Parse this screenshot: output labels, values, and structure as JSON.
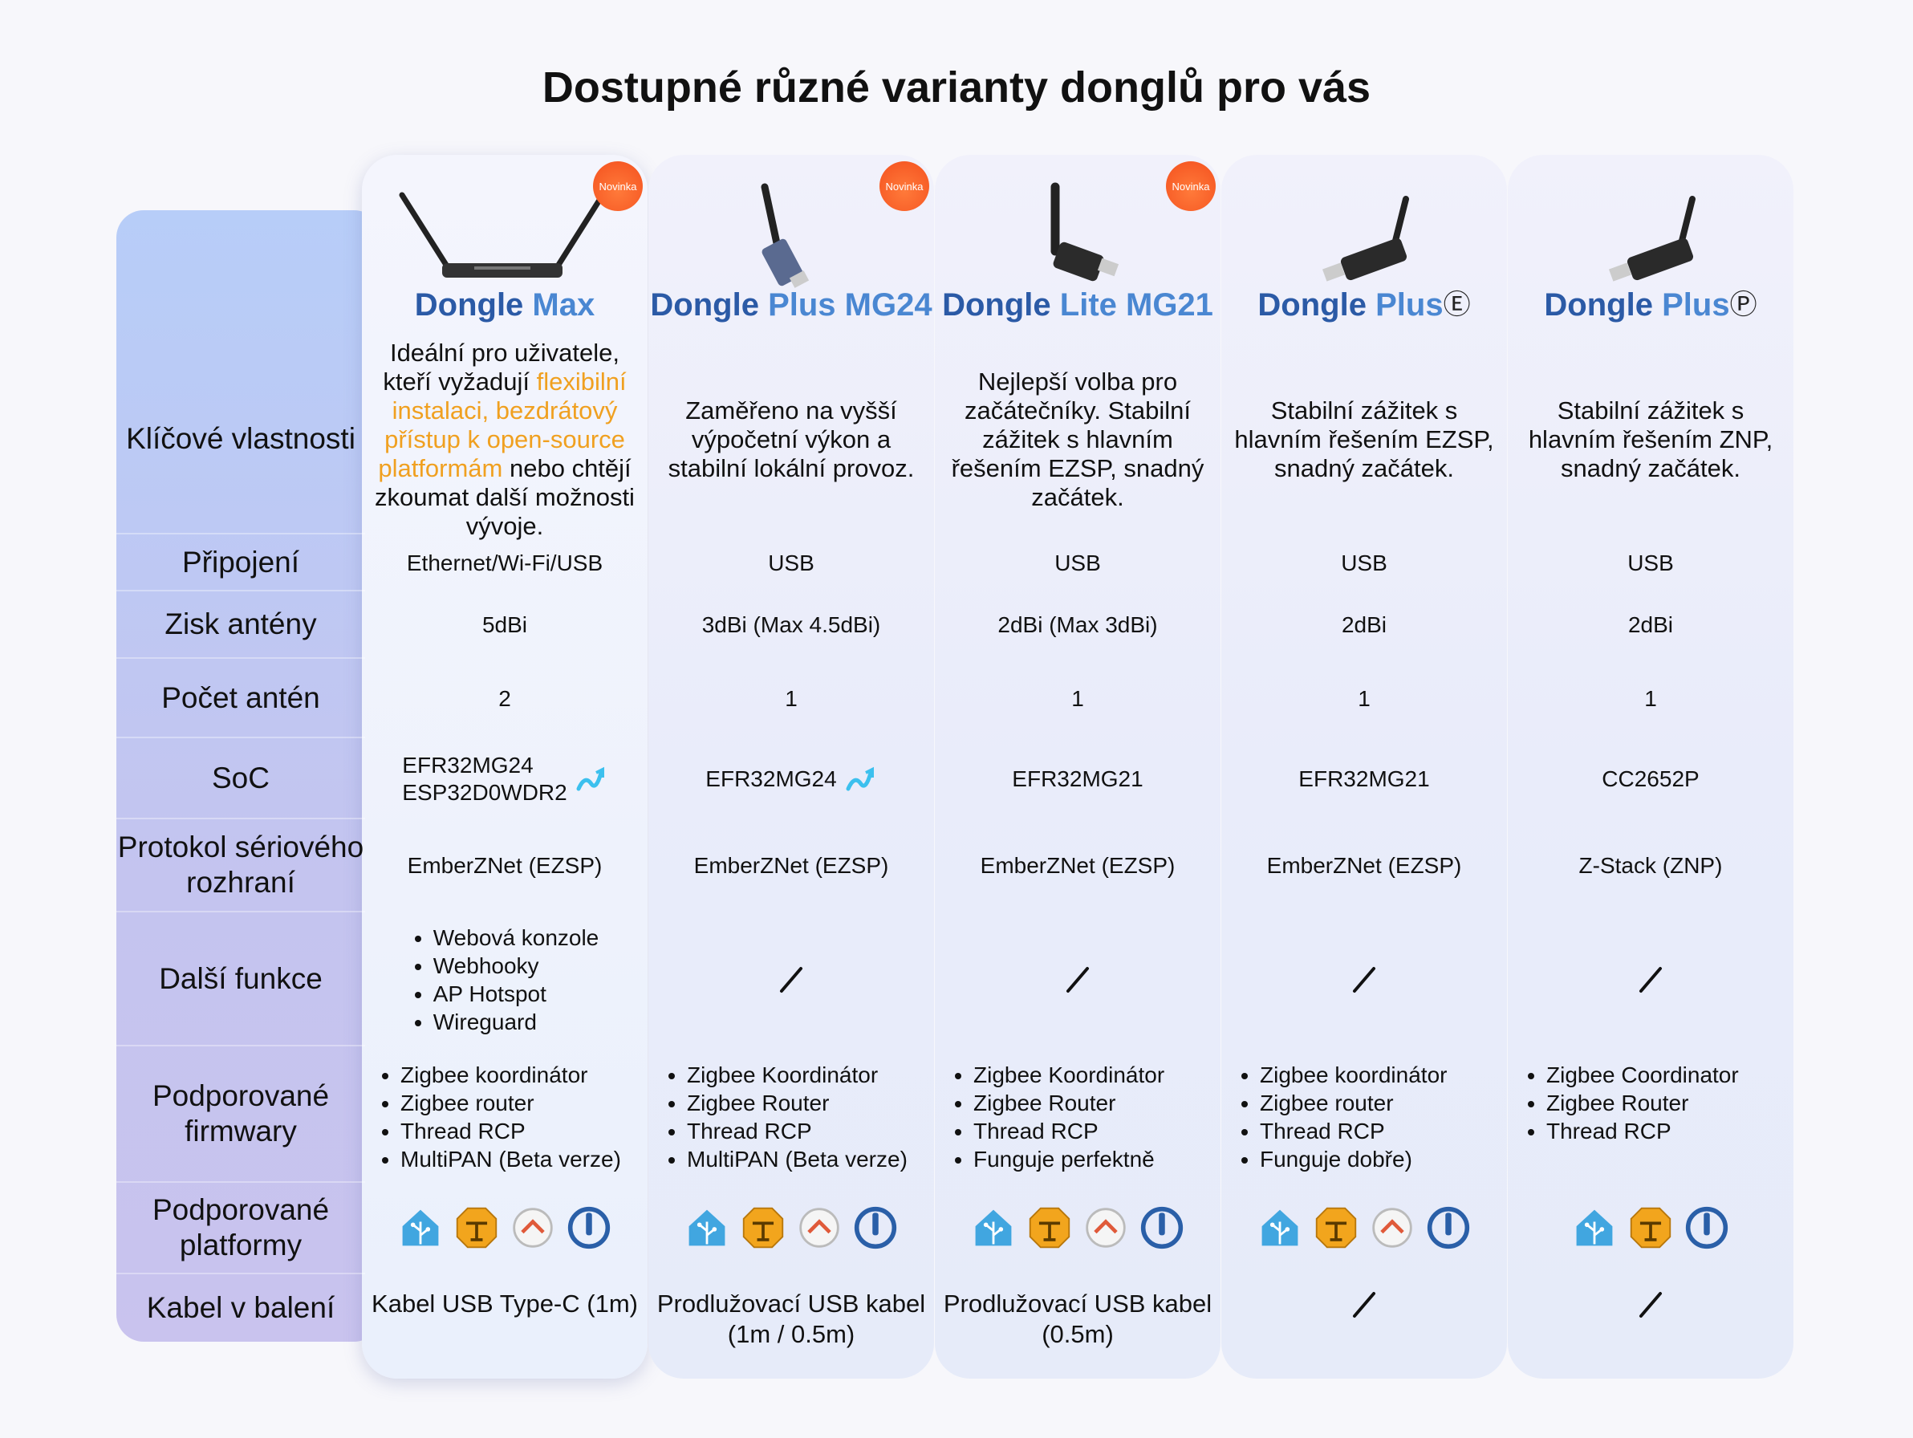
{
  "title": "Dostupné různé varianty donglů pro vás",
  "row_labels": [
    "Klíčové vlastnosti",
    "Připojení",
    "Zisk antény",
    "Počet antén",
    "SoC",
    "Protokol sériového rozhraní",
    "Další funkce",
    "Podporované firmwary",
    "Podporované platformy",
    "Kabel v balení"
  ],
  "products": [
    {
      "badge": "Novinka",
      "series": "Dongle",
      "model": "Max",
      "features": [
        {
          "text": "Ideální pro uživatele, kteří vyžadují "
        },
        {
          "text": "flexibilní instalaci, bezdrátový přístup k open-source platformám",
          "highlight": true
        },
        {
          "text": " nebo chtějí zkoumat další možnosti vývoje."
        }
      ],
      "connection": "Ethernet/Wi-Fi/USB",
      "antenna_gain": "5dBi",
      "antenna_count": 2,
      "soc": [
        "EFR32MG24",
        "ESP32D0WDR2"
      ],
      "soc_upgrade": true,
      "protocol": "EmberZNet (EZSP)",
      "extra": [
        "Webová konzole",
        "Webhooky",
        "AP Hotspot",
        "Wireguard"
      ],
      "firmware": [
        "Zigbee koordinátor",
        "Zigbee router",
        "Thread RCP",
        "MultiPAN (Beta verze)"
      ],
      "cable": "Kabel USB Type-C (1m)"
    },
    {
      "badge": "Novinka",
      "series": "Dongle",
      "model": "Plus MG24",
      "features": [
        {
          "text": "Zaměřeno na vyšší výpočetní výkon a stabilní lokální provoz."
        }
      ],
      "connection": "USB",
      "antenna_gain": "3dBi (Max 4.5dBi)",
      "antenna_count": 1,
      "soc": [
        "EFR32MG24"
      ],
      "soc_upgrade": true,
      "protocol": "EmberZNet (EZSP)",
      "extra": null,
      "firmware": [
        "Zigbee Koordinátor",
        "Zigbee Router",
        "Thread RCP",
        "MultiPAN (Beta verze)"
      ],
      "cable": "Prodlužovací USB kabel (1m / 0.5m)"
    },
    {
      "badge": "Novinka",
      "series": "Dongle",
      "model": "Lite MG21",
      "features": [
        {
          "text": "Nejlepší volba pro začátečníky. Stabilní zážitek s hlavním řešením EZSP, snadný začátek."
        }
      ],
      "connection": "USB",
      "antenna_gain": "2dBi (Max 3dBi)",
      "antenna_count": 1,
      "soc": [
        "EFR32MG21"
      ],
      "soc_upgrade": false,
      "protocol": "EmberZNet (EZSP)",
      "extra": null,
      "firmware": [
        "Zigbee Koordinátor",
        "Zigbee Router",
        "Thread RCP",
        "Funguje perfektně"
      ],
      "cable": "Prodlužovací USB kabel (0.5m)"
    },
    {
      "series": "Dongle",
      "model": "Plus",
      "mark": "Ⓔ",
      "features": [
        {
          "text": "Stabilní zážitek s hlavním řešením EZSP, snadný začátek."
        }
      ],
      "connection": "USB",
      "antenna_gain": "2dBi",
      "antenna_count": 1,
      "soc": [
        "EFR32MG21"
      ],
      "soc_upgrade": false,
      "protocol": "EmberZNet (EZSP)",
      "extra": null,
      "firmware": [
        "Zigbee koordinátor",
        "Zigbee router",
        "Thread RCP",
        "Funguje dobře)"
      ],
      "cable": null
    },
    {
      "series": "Dongle",
      "model": "Plus",
      "mark": "Ⓟ",
      "features": [
        {
          "text": "Stabilní zážitek s hlavním řešením ZNP, snadný začátek."
        }
      ],
      "connection": "USB",
      "antenna_gain": "2dBi",
      "antenna_count": 1,
      "soc": [
        "CC2652P"
      ],
      "soc_upgrade": false,
      "protocol": "Z-Stack (ZNP)",
      "extra": null,
      "firmware": [
        "Zigbee Coordinator",
        "Zigbee Router",
        "Thread RCP"
      ],
      "cable": null
    }
  ]
}
